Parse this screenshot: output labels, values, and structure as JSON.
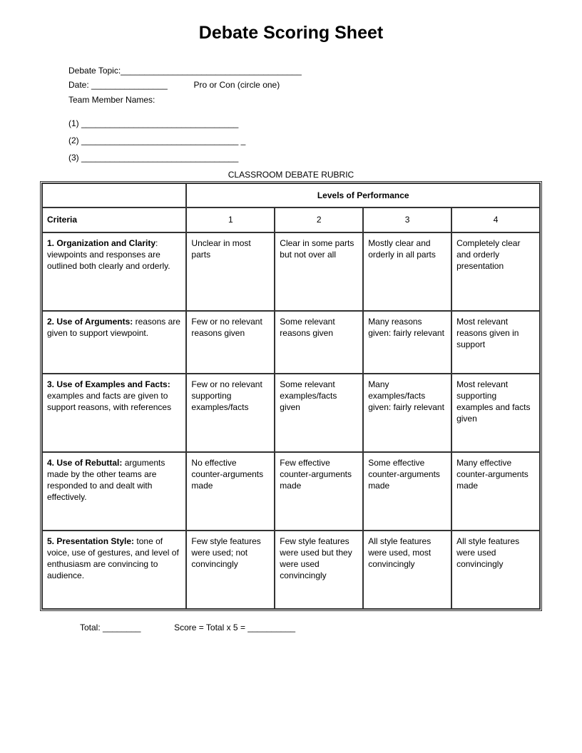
{
  "title": "Debate Scoring Sheet",
  "header": {
    "topic_label": "Debate Topic:",
    "topic_line": "______________________________________",
    "date_label": "Date:",
    "date_line": "________________",
    "side_label": "Pro or Con  (circle one)",
    "team_label": "Team Member Names:",
    "member1": "(1) _________________________________",
    "member2": "(2) _________________________________  _",
    "member3": "(3) _________________________________"
  },
  "rubric_title": "CLASSROOM DEBATE RUBRIC",
  "table": {
    "levels_header": "Levels of Performance",
    "criteria_header": "Criteria",
    "level_nums": [
      "1",
      "2",
      "3",
      "4"
    ],
    "rows": [
      {
        "title": "1. Organization and Clarity",
        "desc": ": viewpoints and responses are outlined both clearly and orderly.",
        "cells": [
          "Unclear in most parts",
          "Clear in some parts but not over all",
          "Mostly clear and orderly in all parts",
          "Completely clear and orderly presentation"
        ]
      },
      {
        "title": "2. Use of Arguments:",
        "desc": " reasons are given to support viewpoint.",
        "cells": [
          "Few or no relevant reasons given",
          "Some relevant reasons given",
          "Many reasons given: fairly relevant",
          "Most relevant reasons given in support"
        ]
      },
      {
        "title": "3. Use of Examples and Facts:",
        "desc": " examples and facts are given to support reasons, with references",
        "cells": [
          "Few or no relevant supporting examples/facts",
          "Some relevant examples/facts given",
          "Many examples/facts given: fairly relevant",
          "Most relevant supporting examples and facts given"
        ]
      },
      {
        "title": "4. Use of Rebuttal:",
        "desc": " arguments made by the other teams are responded to and dealt with effectively.",
        "cells": [
          "No effective counter-arguments made",
          "Few effective counter-arguments made",
          "Some effective counter-arguments made",
          "Many effective counter-arguments made"
        ]
      },
      {
        "title": "5. Presentation Style:",
        "desc": " tone of voice, use of gestures, and level of enthusiasm are convincing to audience.",
        "cells": [
          "Few style features were used; not convincingly",
          "Few style features were used but they were used convincingly",
          "All style features were used, most convincingly",
          "All style features were used convincingly"
        ]
      }
    ]
  },
  "footer": {
    "total_label": "Total:",
    "total_line": "________",
    "score_label": "Score = Total x 5    =",
    "score_line": "__________"
  }
}
